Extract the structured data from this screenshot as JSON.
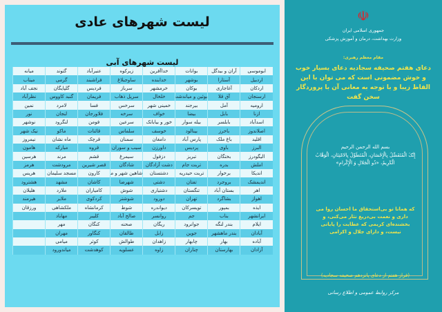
{
  "left": {
    "title": "لیست شهرهای عادی",
    "subtitle": "لیست شهرهای آبی",
    "rows": [
      [
        "ابوموسی",
        "آران و بیدگل",
        "بوانات",
        "خداآفرین",
        "زیرکوه",
        "عنبرآباد",
        "گتوند",
        "میانه"
      ],
      [
        "اردبیل",
        "آستارا",
        "بوشهر",
        "خدابنده",
        "ساوجبلاغ",
        "فراشبند",
        "گرمی",
        "میناب"
      ],
      [
        "اردکان",
        "آغاجاری",
        "بوکان",
        "خرمشهر",
        "سرباز",
        "فردیس",
        "گلپایگان",
        "نجف آباد"
      ],
      [
        "ارسنجان",
        "آق قلا",
        "بوئین و میاندشت",
        "خلخال",
        "سرپل ذهاب",
        "فریمان",
        "گنبد کاووس",
        "نظرآباد"
      ],
      [
        "ارومیه",
        "آمل",
        "بیرجند",
        "خمینی شهر",
        "سرخس",
        "فسا",
        "لامرد",
        "نمین"
      ],
      [
        "ازنا",
        "بابل",
        "بیضا",
        "خواف",
        "سرخه",
        "فلاورجان",
        "لنجان",
        "نور"
      ],
      [
        "اسدآباد",
        "بابلسر",
        "بیله سوار",
        "خور و بیابانک",
        "سرعین",
        "فومن",
        "لنگرود",
        "نوشهر"
      ],
      [
        "اصلاندوز",
        "باخرز",
        "بینالود",
        "خوسف",
        "سلماس",
        "قائنات",
        "ماکو",
        "نیک شهر"
      ],
      [
        "اقلید",
        "باغ ملک",
        "پارس آباد",
        "دامغان",
        "سمنان",
        "قرچک",
        "ماه نشان",
        "نیمروز"
      ],
      [
        "البرز",
        "باوی",
        "پردیس",
        "داورزن",
        "سیب و سوران",
        "قروه",
        "مبارکه",
        "هامون"
      ],
      [
        "الیگودرز",
        "بختگان",
        "تبریز",
        "دزفول",
        "سیمرغ",
        "قشم",
        "مرند",
        "هرسین"
      ],
      [
        "املش",
        "بدره",
        "تربت جام",
        "دشت آزادگان",
        "شادگان",
        "قصر شیرین",
        "مرودشت",
        "هرمز"
      ],
      [
        "اندیکا",
        "برخوار",
        "تربت حیدریه",
        "دشتستان",
        "شاهین شهر و میمه",
        "کارون",
        "مسجد سلیمان",
        "هریس"
      ],
      [
        "اندیمشک",
        "بروجرد",
        "تفتان",
        "دشتی",
        "شهرضا",
        "کاشان",
        "مشهد",
        "هشترود"
      ],
      [
        "اهر",
        "بستان آباد",
        "تنگستان",
        "دشتیاری",
        "شوش",
        "کامیاران",
        "ملارد",
        "هلیلان"
      ],
      [
        "اهواز",
        "بشاگرد",
        "تهران",
        "دورود",
        "شوشتر",
        "کردکوی",
        "ملایر",
        "هیرمند"
      ],
      [
        "ایذه",
        "بمپور",
        "تویسرکان",
        "دیواندره",
        "شوط",
        "کرمانشاه",
        "ملکشاهی",
        "ورزقان"
      ],
      [
        "ایرانشهر",
        "بناب",
        "جم",
        "روانسر",
        "صالح آباد",
        "کلیبر",
        "مهاباد",
        ""
      ],
      [
        "ایلام",
        "بندر لنگه",
        "جوانرود",
        "ریگان",
        "صحنه",
        "کنگان",
        "مهر",
        ""
      ],
      [
        "آبادان",
        "بندر ماهشهر",
        "جوین",
        "زابل",
        "طالقان",
        "کنگاور",
        "مهران",
        ""
      ],
      [
        "آباده",
        "بهار",
        "چابهار",
        "زاهدان",
        "طوالش",
        "کوثر",
        "میامی",
        ""
      ],
      [
        "آزادان",
        "بهارستان",
        "چناران",
        "زاوه",
        "عسلویه",
        "کوهدشت",
        "میاندورود",
        ""
      ]
    ]
  },
  "right": {
    "emblem_icon": "iran-emblem-icon",
    "org1": "جمهوری اسلامی ایران",
    "org2": "وزارت بهداشت، درمان و آموزش پزشکی",
    "speaker": "مقام معظم رهبری:",
    "quote": "دعای هفتم صحیفه سجادیه دعای بسیار خوب و خوش مضمونی است که می توان با این الفاظ زیبا و با توجه به معانی آن با پروردگار سخن گفت",
    "basmala": "بسم الله الرحمن الرحیم",
    "arabic": "إِنَّکَ الْمُتَفَضِّلُ بِالْإِحْسَانِ، الْمُتَطَوِّلُ بِالامْتِنَانِ، الْوَهَّابُ الْکَرِیمُ، «ذُو الْجَلالِ وَ الْإِکْرامِ»",
    "translation": "که همانا تو بی‌استحقاق ما احسان روا می داری و نعمت بی‌دریغ نثار می‌کنی، و بخشنده‌ای کریمی که عطایت را پایانی نیست، و دارای جلال و اکرامی",
    "source": "(فراز هفتم از دعای پانزدهم صحیفه سجادیه)",
    "footer": "مرکز روابط عمومی و اطلاع رسانی"
  },
  "colors": {
    "panel": "#6cdaf0",
    "right": "#1f9fae",
    "quote": "#f3e54a"
  }
}
